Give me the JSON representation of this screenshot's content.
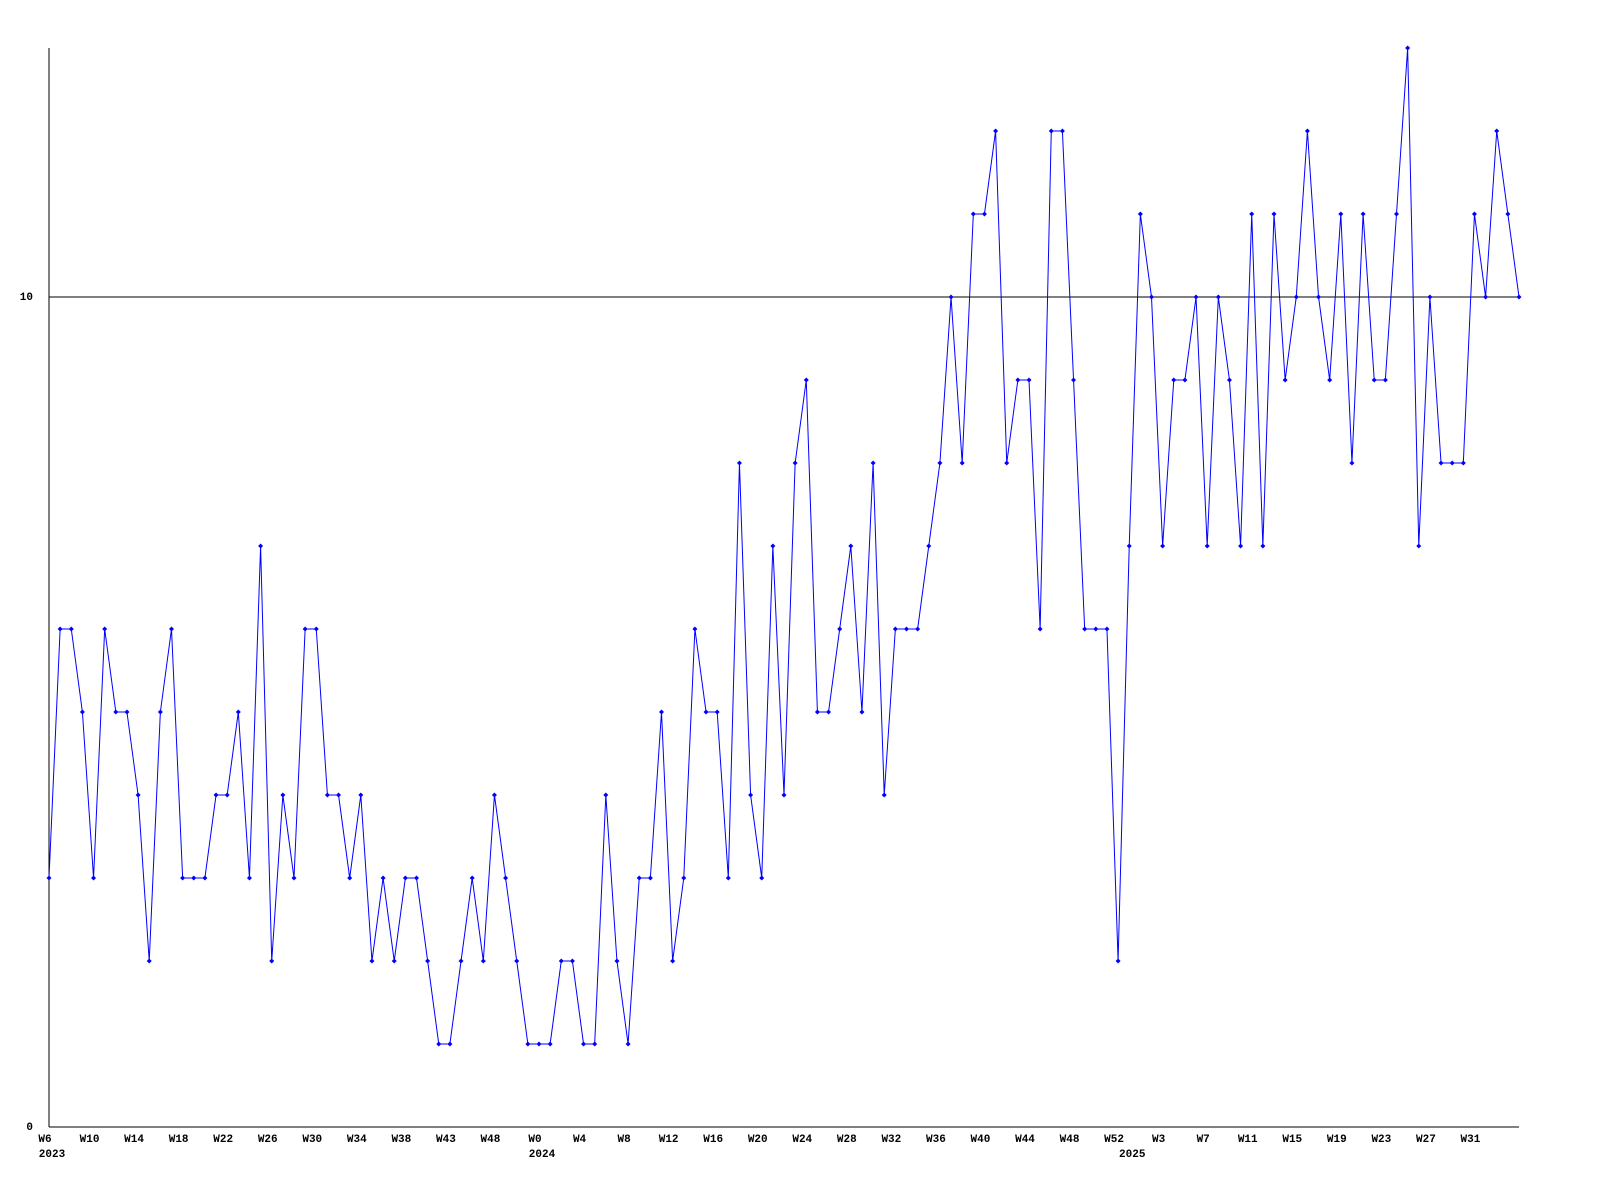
{
  "chart_data": {
    "type": "line",
    "categories": [
      "W6",
      null,
      null,
      null,
      "W10",
      null,
      null,
      null,
      "W14",
      null,
      null,
      null,
      "W18",
      null,
      null,
      null,
      "W22",
      null,
      null,
      null,
      "W26",
      null,
      null,
      null,
      "W30",
      null,
      null,
      null,
      "W34",
      null,
      null,
      null,
      "W38",
      null,
      null,
      null,
      "W43",
      null,
      null,
      null,
      "W48",
      null,
      null,
      null,
      "W0",
      null,
      null,
      null,
      "W4",
      null,
      null,
      null,
      "W8",
      null,
      null,
      null,
      "W12",
      null,
      null,
      null,
      "W16",
      null,
      null,
      null,
      "W20",
      null,
      null,
      null,
      "W24",
      null,
      null,
      null,
      "W28",
      null,
      null,
      null,
      "W32",
      null,
      null,
      null,
      "W36",
      null,
      null,
      null,
      "W40",
      null,
      null,
      null,
      "W44",
      null,
      null,
      null,
      "W48",
      null,
      null,
      null,
      "W52",
      null,
      null,
      null,
      "W3",
      null,
      null,
      null,
      "W7",
      null,
      null,
      null,
      "W11",
      null,
      null,
      null,
      "W15",
      null,
      null,
      null,
      "W19",
      null,
      null,
      null,
      "W23",
      null,
      null,
      null,
      "W27",
      null,
      null,
      null,
      "W31",
      null,
      null,
      null,
      null
    ],
    "years": [
      "2023",
      null,
      null,
      null,
      null,
      null,
      null,
      null,
      null,
      null,
      null,
      null,
      null,
      null,
      null,
      null,
      null,
      null,
      null,
      null,
      null,
      null,
      null,
      null,
      null,
      null,
      null,
      null,
      null,
      null,
      null,
      null,
      null,
      null,
      null,
      null,
      null,
      null,
      null,
      null,
      null,
      null,
      null,
      null,
      "2024",
      null,
      null,
      null,
      null,
      null,
      null,
      null,
      null,
      null,
      null,
      null,
      null,
      null,
      null,
      null,
      null,
      null,
      null,
      null,
      null,
      null,
      null,
      null,
      null,
      null,
      null,
      null,
      null,
      null,
      null,
      null,
      null,
      null,
      null,
      null,
      null,
      null,
      null,
      null,
      null,
      null,
      null,
      null,
      null,
      null,
      null,
      null,
      null,
      null,
      null,
      null,
      null,
      "2025",
      null,
      null,
      null,
      null,
      null,
      null,
      null,
      null,
      null,
      null,
      null,
      null,
      null,
      null,
      null,
      null,
      null,
      null,
      null,
      null,
      null,
      null,
      null,
      null,
      null,
      null,
      null,
      null,
      null,
      null,
      null,
      null,
      null,
      null,
      null
    ],
    "series": [
      {
        "color": "#0000ff",
        "values": [
          3,
          6,
          6,
          5,
          3,
          6,
          5,
          5,
          4,
          2,
          5,
          6,
          3,
          3,
          3,
          4,
          4,
          5,
          3,
          7,
          2,
          4,
          3,
          6,
          6,
          4,
          4,
          3,
          4,
          2,
          3,
          2,
          3,
          3,
          2,
          1,
          1,
          2,
          3,
          2,
          4,
          3,
          2,
          1,
          1,
          1,
          2,
          2,
          1,
          1,
          4,
          2,
          1,
          3,
          3,
          5,
          2,
          3,
          6,
          5,
          5,
          3,
          8,
          4,
          3,
          7,
          4,
          8,
          9,
          5,
          5,
          6,
          7,
          5,
          8,
          4,
          6,
          6,
          6,
          7,
          8,
          10,
          8,
          11,
          11,
          12,
          8,
          9,
          9,
          6,
          12,
          12,
          9,
          6,
          6,
          6,
          2,
          7,
          11,
          10,
          7,
          9,
          9,
          10,
          7,
          10,
          9,
          7,
          11,
          7,
          11,
          9,
          10,
          12,
          10,
          9,
          11,
          8,
          11,
          9,
          9,
          11,
          13,
          7,
          10,
          8,
          8,
          8,
          11,
          10,
          12,
          11,
          10
        ]
      }
    ],
    "ylim": [
      0,
      13
    ],
    "yticks": [
      0,
      10
    ],
    "grid": true
  }
}
